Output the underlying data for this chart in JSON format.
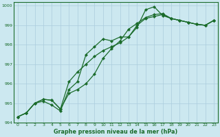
{
  "title": "Graphe pression niveau de la mer (hPa)",
  "bg_color": "#cce8f0",
  "grid_color": "#aaccdd",
  "line_color": "#1a6b2a",
  "xlim_min": -0.5,
  "xlim_max": 23.5,
  "ylim_min": 994.0,
  "ylim_max": 1000.2,
  "yticks": [
    994,
    995,
    996,
    997,
    998,
    999,
    1000
  ],
  "xticks": [
    0,
    1,
    2,
    3,
    4,
    5,
    6,
    7,
    8,
    9,
    10,
    11,
    12,
    13,
    14,
    15,
    16,
    17,
    18,
    19,
    20,
    21,
    22,
    23
  ],
  "series": [
    [
      994.3,
      994.5,
      995.0,
      995.1,
      994.9,
      994.6,
      995.7,
      996.1,
      997.5,
      997.9,
      998.3,
      998.2,
      998.4,
      998.4,
      998.9,
      999.8,
      999.95,
      999.5,
      999.35,
      999.25,
      999.15,
      999.05,
      999.0,
      999.25
    ],
    [
      994.3,
      994.5,
      995.0,
      995.2,
      995.15,
      994.7,
      996.1,
      996.6,
      997.0,
      997.4,
      997.7,
      997.9,
      998.1,
      998.4,
      999.0,
      999.35,
      999.45,
      999.55,
      999.35,
      999.25,
      999.15,
      999.05,
      999.0,
      999.25
    ],
    [
      994.3,
      994.5,
      995.0,
      995.2,
      995.15,
      994.7,
      995.5,
      995.7,
      996.0,
      996.5,
      997.3,
      997.8,
      998.2,
      998.8,
      999.1,
      999.4,
      999.55,
      999.6,
      999.35,
      999.25,
      999.15,
      999.05,
      999.0,
      999.25
    ]
  ],
  "marker": "D",
  "markersize": 2.2,
  "linewidth": 0.9,
  "tick_fontsize": 4.5,
  "xlabel_fontsize": 5.8,
  "spine_linewidth": 0.8
}
